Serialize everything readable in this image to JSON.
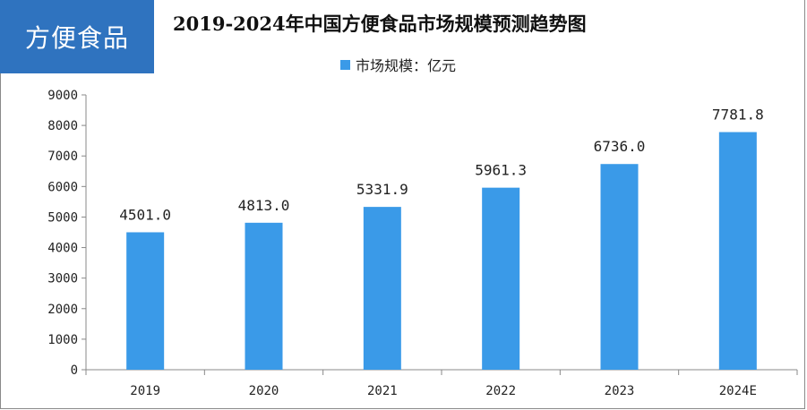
{
  "tag": {
    "label": "方便食品"
  },
  "chart_data": {
    "type": "bar",
    "title": "2019-2024年中国方便食品市场规模预测趋势图",
    "categories": [
      "2019",
      "2020",
      "2021",
      "2022",
      "2023",
      "2024E"
    ],
    "series": [
      {
        "name": "市场规模：亿元",
        "values": [
          4501.0,
          4813.0,
          5331.9,
          5961.3,
          6736.0,
          7781.8
        ],
        "color": "#3a9ae8"
      }
    ],
    "data_labels": [
      "4501.0",
      "4813.0",
      "5331.9",
      "5961.3",
      "6736.0",
      "7781.8"
    ],
    "ylim": [
      0,
      9000
    ],
    "yticks": [
      0,
      1000,
      2000,
      3000,
      4000,
      5000,
      6000,
      7000,
      8000,
      9000
    ],
    "grid": false,
    "legend": "top-center"
  }
}
